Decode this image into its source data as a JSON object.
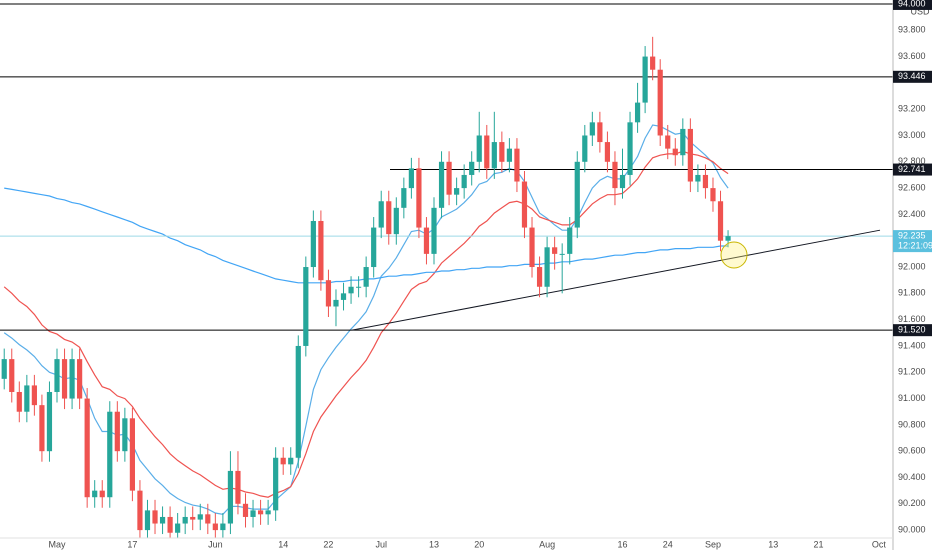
{
  "chart_data": {
    "type": "candlestick",
    "currency": "USD",
    "up_color": "#26a69a",
    "down_color": "#ef5350",
    "categories": [
      null,
      null,
      null,
      null,
      null,
      null,
      null,
      "May",
      null,
      null,
      null,
      null,
      null,
      null,
      null,
      null,
      null,
      "17",
      null,
      null,
      null,
      null,
      null,
      null,
      null,
      null,
      null,
      null,
      "Jun",
      null,
      null,
      null,
      null,
      null,
      null,
      null,
      null,
      "14",
      null,
      null,
      null,
      null,
      null,
      "22",
      null,
      null,
      null,
      null,
      null,
      null,
      "Jul",
      null,
      null,
      null,
      null,
      null,
      null,
      "13",
      null,
      null,
      null,
      null,
      null,
      "20",
      null,
      null,
      null,
      null,
      null,
      null,
      null,
      null,
      "Aug",
      null,
      null,
      null,
      null,
      null,
      null,
      null,
      null,
      null,
      "16",
      null,
      null,
      null,
      null,
      null,
      "24",
      null,
      null,
      null,
      null,
      null,
      "Sep",
      null,
      null,
      null,
      null,
      null,
      null,
      null,
      "13",
      null,
      null,
      null,
      null,
      null,
      "21",
      null,
      null,
      null,
      null,
      null,
      null,
      null,
      "Oct",
      null
    ],
    "open": [
      91.15,
      91.3,
      91.05,
      90.9,
      91.1,
      90.95,
      90.6,
      91.05,
      91.3,
      91.0,
      91.3,
      91.0,
      90.25,
      90.3,
      90.25,
      90.9,
      90.6,
      90.85,
      90.3,
      90.0,
      90.15,
      90.05,
      90.1,
      89.98,
      90.05,
      90.1,
      90.08,
      90.12,
      90.05,
      90.0,
      90.05,
      90.45,
      90.2,
      90.1,
      90.15,
      90.12,
      90.15,
      90.55,
      90.5,
      90.55,
      91.4,
      92.0,
      92.35,
      91.9,
      91.7,
      91.75,
      91.8,
      91.85,
      91.85,
      92.0,
      92.3,
      92.5,
      92.25,
      92.45,
      92.6,
      92.75,
      92.3,
      92.1,
      92.45,
      92.8,
      92.55,
      92.6,
      92.7,
      92.8,
      93.0,
      92.75,
      92.95,
      92.8,
      92.9,
      92.65,
      92.3,
      92.0,
      91.85,
      92.15,
      92.1,
      92.1,
      92.3,
      92.8,
      93.0,
      93.1,
      92.95,
      92.8,
      92.6,
      92.7,
      93.1,
      93.25,
      93.6,
      93.5,
      93.0,
      92.9,
      92.85,
      93.05,
      92.65,
      92.7,
      92.6,
      92.5,
      92.2,
      null,
      null,
      null,
      null,
      null,
      null,
      null,
      null,
      null,
      null,
      null,
      null,
      null,
      null,
      null,
      null,
      null,
      null,
      null,
      null,
      null
    ],
    "high": [
      91.38,
      91.38,
      91.13,
      91.18,
      91.18,
      91.03,
      91.13,
      91.38,
      91.38,
      91.38,
      91.38,
      91.08,
      90.38,
      90.38,
      90.98,
      90.98,
      90.93,
      90.93,
      90.38,
      90.23,
      90.23,
      90.18,
      90.18,
      90.13,
      90.18,
      90.18,
      90.2,
      90.2,
      90.13,
      90.13,
      90.6,
      90.6,
      90.28,
      90.23,
      90.23,
      90.23,
      90.63,
      90.63,
      90.63,
      91.48,
      92.08,
      92.43,
      92.43,
      91.98,
      91.83,
      91.88,
      91.93,
      91.93,
      92.08,
      92.38,
      92.58,
      92.58,
      92.53,
      92.68,
      92.83,
      92.83,
      92.38,
      92.53,
      92.88,
      92.88,
      92.68,
      92.78,
      92.88,
      93.18,
      93.08,
      93.18,
      93.03,
      92.98,
      92.98,
      92.73,
      92.38,
      92.08,
      92.23,
      92.23,
      92.18,
      92.38,
      92.88,
      93.08,
      93.18,
      93.18,
      93.03,
      92.88,
      92.9,
      93.18,
      93.4,
      93.68,
      93.75,
      93.58,
      93.08,
      92.98,
      93.13,
      93.13,
      92.78,
      92.78,
      92.68,
      92.58,
      92.28,
      null,
      null,
      null,
      null,
      null,
      null,
      null,
      null,
      null,
      null,
      null,
      null,
      null,
      null,
      null,
      null,
      null,
      null,
      null,
      null,
      null
    ],
    "low": [
      91.07,
      90.97,
      90.82,
      90.82,
      90.87,
      90.52,
      90.52,
      90.97,
      90.92,
      90.92,
      90.92,
      90.17,
      90.17,
      90.17,
      90.17,
      90.52,
      90.52,
      90.22,
      89.92,
      89.92,
      89.97,
      89.97,
      89.9,
      89.9,
      89.97,
      90.0,
      90.0,
      89.97,
      89.92,
      89.92,
      89.97,
      90.12,
      90.02,
      90.02,
      90.04,
      90.04,
      90.07,
      90.42,
      90.42,
      90.47,
      91.32,
      91.92,
      91.82,
      91.62,
      91.55,
      91.67,
      91.72,
      91.77,
      91.77,
      91.92,
      92.22,
      92.17,
      92.17,
      92.37,
      92.52,
      92.22,
      92.02,
      92.02,
      92.37,
      92.47,
      92.47,
      92.52,
      92.62,
      92.72,
      92.67,
      92.67,
      92.72,
      92.72,
      92.57,
      92.22,
      91.92,
      91.77,
      91.77,
      91.98,
      91.8,
      92.02,
      92.22,
      92.72,
      92.92,
      92.87,
      92.72,
      92.47,
      92.52,
      92.62,
      93.02,
      93.17,
      93.42,
      92.92,
      92.82,
      92.77,
      92.77,
      92.57,
      92.57,
      92.52,
      92.42,
      92.12,
      92.15,
      null,
      null,
      null,
      null,
      null,
      null,
      null,
      null,
      null,
      null,
      null,
      null,
      null,
      null,
      null,
      null,
      null,
      null,
      null,
      null,
      null
    ],
    "close": [
      91.3,
      91.05,
      90.9,
      91.1,
      90.95,
      90.6,
      91.05,
      91.3,
      91.0,
      91.3,
      91.0,
      90.25,
      90.3,
      90.25,
      90.9,
      90.6,
      90.85,
      90.3,
      90.0,
      90.15,
      90.05,
      90.1,
      89.98,
      90.05,
      90.1,
      90.08,
      90.12,
      90.05,
      90.0,
      90.05,
      90.45,
      90.2,
      90.1,
      90.15,
      90.12,
      90.15,
      90.55,
      90.5,
      90.55,
      91.4,
      92.0,
      92.35,
      91.9,
      91.7,
      91.75,
      91.8,
      91.85,
      91.85,
      92.0,
      92.3,
      92.5,
      92.25,
      92.45,
      92.6,
      92.75,
      92.3,
      92.1,
      92.45,
      92.8,
      92.55,
      92.6,
      92.7,
      92.8,
      93.0,
      92.75,
      92.95,
      92.8,
      92.9,
      92.65,
      92.3,
      92.0,
      91.85,
      92.15,
      92.1,
      92.1,
      92.3,
      92.8,
      93.0,
      93.1,
      92.95,
      92.8,
      92.6,
      92.7,
      93.1,
      93.25,
      93.6,
      93.5,
      93.0,
      92.9,
      92.85,
      93.05,
      92.65,
      92.7,
      92.6,
      92.5,
      92.2,
      92.235,
      null,
      null,
      null,
      null,
      null,
      null,
      null,
      null,
      null,
      null,
      null,
      null,
      null,
      null,
      null,
      null,
      null,
      null,
      null,
      null,
      null
    ],
    "lines": [
      {
        "color": "#5aaee8",
        "values": [
          91.5,
          91.46,
          91.41,
          91.37,
          91.32,
          91.25,
          91.2,
          91.18,
          91.15,
          91.16,
          91.14,
          91.0,
          90.85,
          90.75,
          90.75,
          90.72,
          90.73,
          90.65,
          90.53,
          90.46,
          90.39,
          90.34,
          90.28,
          90.24,
          90.21,
          90.19,
          90.18,
          90.16,
          90.13,
          90.12,
          90.18,
          90.18,
          90.17,
          90.16,
          90.16,
          90.16,
          90.23,
          90.28,
          90.33,
          90.52,
          90.79,
          91.07,
          91.22,
          91.31,
          91.39,
          91.46,
          91.53,
          91.59,
          91.66,
          91.78,
          91.93,
          91.99,
          92.07,
          92.17,
          92.27,
          92.28,
          92.25,
          92.29,
          92.38,
          92.41,
          92.44,
          92.49,
          92.55,
          92.63,
          92.65,
          92.71,
          92.72,
          92.75,
          92.73,
          92.65,
          92.53,
          92.41,
          92.37,
          92.32,
          92.28,
          92.28,
          92.37,
          92.49,
          92.6,
          92.66,
          92.69,
          92.67,
          92.67,
          92.75,
          92.84,
          92.98,
          93.08,
          93.07,
          93.04,
          93.01,
          93.02,
          92.95,
          92.9,
          92.85,
          92.79,
          92.68,
          92.6,
          null,
          null,
          null,
          null,
          null,
          null,
          null,
          null,
          null,
          null,
          null,
          null,
          null,
          null,
          null,
          null,
          null,
          null,
          null,
          null,
          null
        ]
      },
      {
        "color": "#ef5350",
        "values": [
          91.85,
          91.8,
          91.74,
          91.7,
          91.64,
          91.56,
          91.51,
          91.49,
          91.45,
          91.43,
          91.39,
          91.28,
          91.18,
          91.09,
          91.07,
          91.02,
          91.0,
          90.94,
          90.85,
          90.78,
          90.71,
          90.65,
          90.58,
          90.53,
          90.49,
          90.45,
          90.42,
          90.38,
          90.34,
          90.31,
          90.32,
          90.31,
          90.29,
          90.28,
          90.26,
          90.25,
          90.28,
          90.3,
          90.33,
          90.43,
          90.58,
          90.75,
          90.86,
          90.94,
          91.02,
          91.09,
          91.16,
          91.22,
          91.29,
          91.39,
          91.5,
          91.57,
          91.65,
          91.74,
          91.83,
          91.87,
          91.89,
          91.95,
          92.03,
          92.08,
          92.13,
          92.18,
          92.24,
          92.31,
          92.35,
          92.41,
          92.45,
          92.49,
          92.5,
          92.48,
          92.44,
          92.38,
          92.36,
          92.34,
          92.32,
          92.32,
          92.36,
          92.42,
          92.48,
          92.52,
          92.55,
          92.55,
          92.56,
          92.61,
          92.67,
          92.76,
          92.83,
          92.85,
          92.86,
          92.86,
          92.88,
          92.86,
          92.85,
          92.83,
          92.8,
          92.75,
          92.71,
          null,
          null,
          null,
          null,
          null,
          null,
          null,
          null,
          null,
          null,
          null,
          null,
          null,
          null,
          null,
          null,
          null,
          null,
          null,
          null,
          null
        ]
      },
      {
        "color": "#42a5f5",
        "values": [
          92.6,
          92.59,
          92.58,
          92.57,
          92.56,
          92.55,
          92.54,
          92.52,
          92.51,
          92.49,
          92.48,
          92.46,
          92.44,
          92.42,
          92.4,
          92.38,
          92.36,
          92.34,
          92.31,
          92.29,
          92.27,
          92.25,
          92.22,
          92.2,
          92.17,
          92.15,
          92.13,
          92.1,
          92.08,
          92.05,
          92.03,
          92.01,
          91.99,
          91.97,
          91.95,
          91.93,
          91.91,
          91.9,
          91.89,
          91.88,
          91.88,
          91.88,
          91.88,
          91.88,
          91.89,
          91.89,
          91.9,
          91.9,
          91.91,
          91.91,
          91.92,
          91.93,
          91.93,
          91.94,
          91.94,
          91.95,
          91.96,
          91.96,
          91.97,
          91.97,
          91.98,
          91.98,
          91.99,
          91.99,
          92.0,
          92.0,
          92.0,
          92.01,
          92.01,
          92.02,
          92.02,
          92.02,
          92.03,
          92.03,
          92.04,
          92.04,
          92.05,
          92.06,
          92.06,
          92.07,
          92.08,
          92.09,
          92.09,
          92.1,
          92.11,
          92.11,
          92.12,
          92.13,
          92.13,
          92.14,
          92.14,
          92.14,
          92.15,
          92.15,
          92.15,
          92.16,
          92.16,
          null,
          null,
          null,
          null,
          null,
          null,
          null,
          null,
          null,
          null,
          null,
          null,
          null,
          null,
          null,
          null,
          null,
          null,
          null,
          null,
          null
        ]
      }
    ],
    "levels": [
      {
        "value": 94,
        "label": "94.000"
      },
      {
        "value": 93.446,
        "label": "93.446"
      },
      {
        "value": 92.741,
        "label": "92.741"
      },
      {
        "value": 91.52,
        "label": "91.520"
      }
    ],
    "last_price": {
      "value": 92.235,
      "label": "92.235",
      "countdown": "12:21:09"
    },
    "trendline": {
      "values": [
        91.52,
        92.28
      ]
    },
    "ylim": [
      89.94,
      94.03
    ],
    "yticks": [
      {
        "value": 93.8,
        "label": "93.800"
      },
      {
        "value": 93.6,
        "label": "93.600"
      },
      {
        "value": 93.2,
        "label": "93.200"
      },
      {
        "value": 93,
        "label": "93.000"
      },
      {
        "value": 92.8,
        "label": "92.800"
      },
      {
        "value": 92.6,
        "label": "92.600"
      },
      {
        "value": 92.4,
        "label": "92.400"
      },
      {
        "value": 92,
        "label": "92.000"
      },
      {
        "value": 91.8,
        "label": "91.800"
      },
      {
        "value": 91.6,
        "label": "91.600"
      },
      {
        "value": 91.4,
        "label": "91.400"
      },
      {
        "value": 91.2,
        "label": "91.200"
      },
      {
        "value": 91,
        "label": "91.000"
      },
      {
        "value": 90.8,
        "label": "90.800"
      },
      {
        "value": 90.6,
        "label": "90.600"
      },
      {
        "value": 90.4,
        "label": "90.400"
      },
      {
        "value": 90.2,
        "label": "90.200"
      },
      {
        "value": 90,
        "label": "90.000"
      }
    ]
  }
}
